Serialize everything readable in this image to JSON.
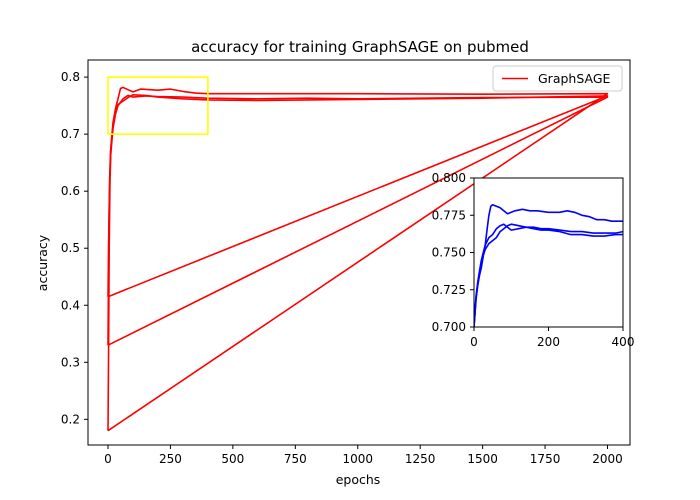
{
  "chart_data": [
    {
      "type": "line",
      "title": "accuracy for training GraphSAGE on pubmed",
      "xlabel": "epochs",
      "ylabel": "accuracy",
      "xlim": [
        -80,
        2090
      ],
      "ylim": [
        0.155,
        0.83
      ],
      "xticks": [
        0,
        250,
        500,
        750,
        1000,
        1250,
        1500,
        1750,
        2000
      ],
      "yticks": [
        0.2,
        0.3,
        0.4,
        0.5,
        0.6,
        0.7,
        0.8
      ],
      "legend": {
        "position": "top-right",
        "entries": [
          "GraphSAGE"
        ]
      },
      "grid": false,
      "colors": {
        "series": "#ff0000",
        "zoom_box": "#ffff00"
      },
      "series": [
        {
          "name": "GraphSAGE",
          "runs": [
            {
              "points": [
                [
                  0,
                  0.18
                ],
                [
                  2,
                  0.3
                ],
                [
                  5,
                  0.5
                ],
                [
                  8,
                  0.62
                ],
                [
                  12,
                  0.68
                ],
                [
                  20,
                  0.72
                ],
                [
                  30,
                  0.745
                ],
                [
                  40,
                  0.762
                ],
                [
                  50,
                  0.78
                ],
                [
                  60,
                  0.782
                ],
                [
                  80,
                  0.778
                ],
                [
                  100,
                  0.774
                ],
                [
                  130,
                  0.779
                ],
                [
                  170,
                  0.778
                ],
                [
                  200,
                  0.777
                ],
                [
                  250,
                  0.779
                ],
                [
                  300,
                  0.775
                ],
                [
                  350,
                  0.772
                ],
                [
                  400,
                  0.771
                ],
                [
                  600,
                  0.771
                ],
                [
                  1000,
                  0.771
                ],
                [
                  1500,
                  0.77
                ],
                [
                  2000,
                  0.771
                ],
                [
                  0,
                  0.18
                ]
              ]
            },
            {
              "points": [
                [
                  0,
                  0.33
                ],
                [
                  3,
                  0.5
                ],
                [
                  6,
                  0.6
                ],
                [
                  10,
                  0.66
                ],
                [
                  20,
                  0.71
                ],
                [
                  30,
                  0.735
                ],
                [
                  40,
                  0.75
                ],
                [
                  60,
                  0.762
                ],
                [
                  80,
                  0.768
                ],
                [
                  100,
                  0.765
                ],
                [
                  150,
                  0.767
                ],
                [
                  200,
                  0.766
                ],
                [
                  300,
                  0.765
                ],
                [
                  400,
                  0.763
                ],
                [
                  600,
                  0.762
                ],
                [
                  800,
                  0.763
                ],
                [
                  1000,
                  0.762
                ],
                [
                  1500,
                  0.764
                ],
                [
                  2000,
                  0.765
                ],
                [
                  0,
                  0.33
                ]
              ]
            },
            {
              "points": [
                [
                  0,
                  0.415
                ],
                [
                  3,
                  0.52
                ],
                [
                  6,
                  0.61
                ],
                [
                  10,
                  0.67
                ],
                [
                  20,
                  0.715
                ],
                [
                  30,
                  0.74
                ],
                [
                  40,
                  0.752
                ],
                [
                  60,
                  0.758
                ],
                [
                  80,
                  0.764
                ],
                [
                  100,
                  0.769
                ],
                [
                  150,
                  0.768
                ],
                [
                  200,
                  0.765
                ],
                [
                  300,
                  0.762
                ],
                [
                  400,
                  0.76
                ],
                [
                  600,
                  0.759
                ],
                [
                  800,
                  0.76
                ],
                [
                  1000,
                  0.761
                ],
                [
                  1500,
                  0.763
                ],
                [
                  2000,
                  0.767
                ],
                [
                  0,
                  0.415
                ]
              ]
            }
          ]
        }
      ],
      "annotations": [
        {
          "type": "zoom-box",
          "x": [
            0,
            400
          ],
          "y": [
            0.7,
            0.8
          ]
        }
      ]
    },
    {
      "type": "line",
      "role": "inset",
      "xlim": [
        0,
        400
      ],
      "ylim": [
        0.7,
        0.8
      ],
      "xticks": [
        0,
        200,
        400
      ],
      "yticks": [
        0.7,
        0.725,
        0.75,
        0.775,
        0.8
      ],
      "xtick_labels": [
        "0",
        "200",
        "400"
      ],
      "ytick_labels": [
        "0.700",
        "0.725",
        "0.750",
        "0.775",
        "0.800"
      ],
      "colors": {
        "series": "#0000ff"
      },
      "series": [
        {
          "runs": [
            {
              "points": [
                [
                  0,
                  0.7
                ],
                [
                  3,
                  0.71
                ],
                [
                  6,
                  0.72
                ],
                [
                  10,
                  0.728
                ],
                [
                  15,
                  0.735
                ],
                [
                  20,
                  0.74
                ],
                [
                  25,
                  0.748
                ],
                [
                  30,
                  0.755
                ],
                [
                  35,
                  0.765
                ],
                [
                  40,
                  0.775
                ],
                [
                  45,
                  0.781
                ],
                [
                  50,
                  0.782
                ],
                [
                  60,
                  0.781
                ],
                [
                  70,
                  0.78
                ],
                [
                  80,
                  0.778
                ],
                [
                  90,
                  0.776
                ],
                [
                  100,
                  0.777
                ],
                [
                  110,
                  0.778
                ],
                [
                  130,
                  0.779
                ],
                [
                  150,
                  0.778
                ],
                [
                  170,
                  0.778
                ],
                [
                  200,
                  0.777
                ],
                [
                  230,
                  0.777
                ],
                [
                  250,
                  0.778
                ],
                [
                  270,
                  0.777
                ],
                [
                  290,
                  0.775
                ],
                [
                  310,
                  0.774
                ],
                [
                  330,
                  0.772
                ],
                [
                  350,
                  0.772
                ],
                [
                  370,
                  0.771
                ],
                [
                  400,
                  0.771
                ]
              ]
            },
            {
              "points": [
                [
                  0,
                  0.7
                ],
                [
                  5,
                  0.72
                ],
                [
                  10,
                  0.73
                ],
                [
                  15,
                  0.738
                ],
                [
                  20,
                  0.745
                ],
                [
                  25,
                  0.75
                ],
                [
                  30,
                  0.755
                ],
                [
                  40,
                  0.76
                ],
                [
                  50,
                  0.762
                ],
                [
                  60,
                  0.766
                ],
                [
                  70,
                  0.768
                ],
                [
                  80,
                  0.769
                ],
                [
                  90,
                  0.767
                ],
                [
                  100,
                  0.765
                ],
                [
                  120,
                  0.766
                ],
                [
                  140,
                  0.767
                ],
                [
                  160,
                  0.767
                ],
                [
                  180,
                  0.766
                ],
                [
                  200,
                  0.766
                ],
                [
                  230,
                  0.765
                ],
                [
                  260,
                  0.764
                ],
                [
                  290,
                  0.764
                ],
                [
                  320,
                  0.763
                ],
                [
                  350,
                  0.763
                ],
                [
                  380,
                  0.763
                ],
                [
                  400,
                  0.764
                ]
              ]
            },
            {
              "points": [
                [
                  0,
                  0.7
                ],
                [
                  5,
                  0.718
                ],
                [
                  10,
                  0.728
                ],
                [
                  15,
                  0.736
                ],
                [
                  20,
                  0.742
                ],
                [
                  25,
                  0.748
                ],
                [
                  30,
                  0.752
                ],
                [
                  40,
                  0.756
                ],
                [
                  50,
                  0.758
                ],
                [
                  60,
                  0.76
                ],
                [
                  70,
                  0.764
                ],
                [
                  80,
                  0.766
                ],
                [
                  90,
                  0.768
                ],
                [
                  100,
                  0.769
                ],
                [
                  120,
                  0.768
                ],
                [
                  140,
                  0.767
                ],
                [
                  160,
                  0.766
                ],
                [
                  180,
                  0.765
                ],
                [
                  200,
                  0.765
                ],
                [
                  230,
                  0.764
                ],
                [
                  260,
                  0.762
                ],
                [
                  290,
                  0.762
                ],
                [
                  320,
                  0.761
                ],
                [
                  350,
                  0.761
                ],
                [
                  380,
                  0.762
                ],
                [
                  400,
                  0.762
                ]
              ]
            }
          ]
        }
      ]
    }
  ]
}
